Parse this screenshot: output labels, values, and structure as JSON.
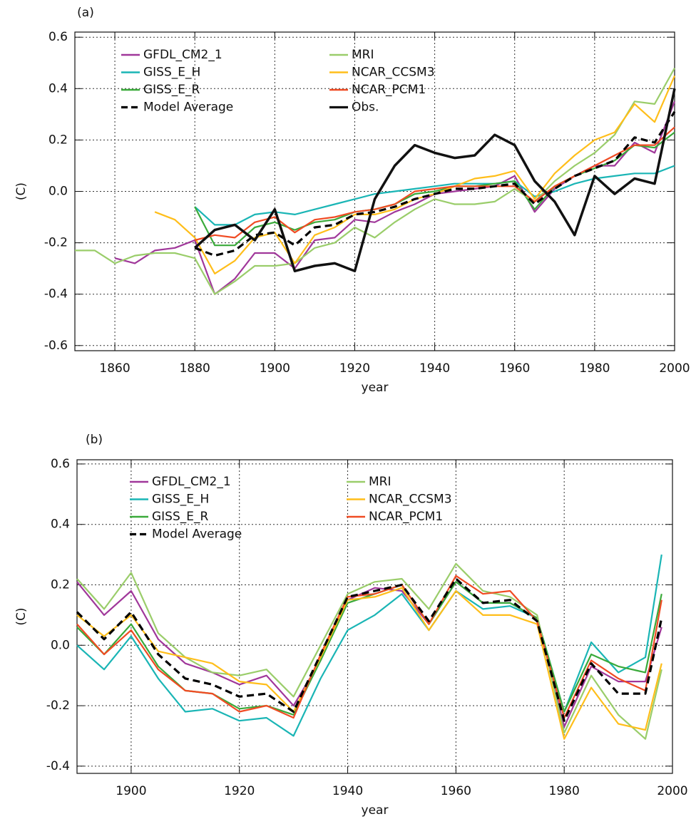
{
  "chart_data": [
    {
      "type": "line",
      "panel_label": "(a)",
      "y_label": "(C)",
      "x_label": "year",
      "xlim": [
        1850,
        2000
      ],
      "xticks": [
        1860,
        1880,
        1900,
        1920,
        1940,
        1960,
        1980,
        2000
      ],
      "ylim": [
        -0.62,
        0.62
      ],
      "yticks": [
        -0.6,
        -0.4,
        -0.2,
        {
          "value": 0,
          "label": "0.0"
        },
        0.2,
        0.4,
        0.6
      ],
      "grid": true,
      "legend": "upper-left",
      "x": [
        1850,
        1855,
        1860,
        1865,
        1870,
        1875,
        1880,
        1885,
        1890,
        1895,
        1900,
        1905,
        1910,
        1915,
        1920,
        1925,
        1930,
        1935,
        1940,
        1945,
        1950,
        1955,
        1960,
        1965,
        1970,
        1975,
        1980,
        1985,
        1990,
        1995,
        2000
      ],
      "series": [
        {
          "name": "GFDL_CM2_1",
          "color": "#a0379a",
          "values": [
            null,
            null,
            -0.26,
            -0.28,
            -0.23,
            -0.22,
            -0.19,
            -0.4,
            -0.34,
            -0.24,
            -0.24,
            -0.3,
            -0.19,
            -0.18,
            -0.11,
            -0.12,
            -0.08,
            -0.05,
            -0.01,
            0.0,
            0.01,
            0.02,
            0.06,
            -0.08,
            0.01,
            0.06,
            0.1,
            0.1,
            0.19,
            0.15,
            0.35
          ]
        },
        {
          "name": "GISS_E_H",
          "color": "#1ab5b5",
          "values": [
            null,
            null,
            null,
            null,
            null,
            null,
            -0.06,
            -0.13,
            -0.13,
            -0.09,
            -0.08,
            -0.09,
            -0.07,
            -0.05,
            -0.03,
            -0.01,
            0.0,
            0.01,
            0.02,
            0.03,
            0.03,
            0.03,
            0.04,
            -0.02,
            0.0,
            0.03,
            0.05,
            0.06,
            0.07,
            0.07,
            0.1
          ]
        },
        {
          "name": "GISS_E_R",
          "color": "#3aaa3a",
          "values": [
            null,
            null,
            null,
            null,
            null,
            null,
            -0.06,
            -0.21,
            -0.21,
            -0.14,
            -0.12,
            -0.15,
            -0.12,
            -0.11,
            -0.08,
            -0.07,
            -0.05,
            -0.01,
            0.0,
            0.02,
            0.02,
            0.03,
            0.04,
            -0.07,
            0.02,
            0.06,
            0.09,
            0.12,
            0.18,
            0.17,
            0.23
          ]
        },
        {
          "name": "Model Average",
          "color": "#000000",
          "dashed": true,
          "values": [
            null,
            null,
            null,
            null,
            null,
            null,
            -0.22,
            -0.25,
            -0.23,
            -0.17,
            -0.16,
            -0.21,
            -0.14,
            -0.13,
            -0.09,
            -0.08,
            -0.06,
            -0.03,
            -0.01,
            0.01,
            0.01,
            0.02,
            0.03,
            -0.05,
            0.01,
            0.06,
            0.09,
            0.12,
            0.21,
            0.19,
            0.31
          ]
        },
        {
          "name": "MRI",
          "color": "#9acd6a",
          "values": [
            -0.23,
            -0.23,
            -0.28,
            -0.25,
            -0.24,
            -0.24,
            -0.26,
            -0.4,
            -0.35,
            -0.29,
            -0.29,
            -0.28,
            -0.22,
            -0.2,
            -0.14,
            -0.18,
            -0.12,
            -0.07,
            -0.03,
            -0.05,
            -0.05,
            -0.04,
            0.01,
            -0.04,
            0.04,
            0.1,
            0.15,
            0.22,
            0.35,
            0.34,
            0.48
          ]
        },
        {
          "name": "NCAR_CCSM3",
          "color": "#ffbe1a",
          "values": [
            null,
            null,
            null,
            null,
            -0.08,
            -0.11,
            -0.18,
            -0.32,
            -0.27,
            -0.18,
            -0.16,
            -0.28,
            -0.17,
            -0.14,
            -0.09,
            -0.09,
            -0.07,
            -0.03,
            -0.01,
            0.02,
            0.05,
            0.06,
            0.08,
            -0.03,
            0.07,
            0.14,
            0.2,
            0.23,
            0.34,
            0.27,
            0.45
          ]
        },
        {
          "name": "NCAR_PCM1",
          "color": "#f04b23",
          "values": [
            null,
            null,
            null,
            null,
            null,
            null,
            -0.19,
            -0.17,
            -0.18,
            -0.12,
            -0.1,
            -0.16,
            -0.11,
            -0.1,
            -0.08,
            -0.07,
            -0.05,
            0.0,
            0.01,
            0.02,
            0.02,
            0.02,
            0.02,
            -0.04,
            0.02,
            0.06,
            0.1,
            0.14,
            0.18,
            0.18,
            0.25
          ]
        },
        {
          "name": "Obs.",
          "color": "#111111",
          "thick": true,
          "values": [
            null,
            null,
            null,
            null,
            null,
            null,
            -0.22,
            -0.15,
            -0.13,
            -0.19,
            -0.07,
            -0.31,
            -0.29,
            -0.28,
            -0.31,
            -0.03,
            0.1,
            0.18,
            0.15,
            0.13,
            0.14,
            0.22,
            0.18,
            0.04,
            -0.04,
            -0.17,
            0.06,
            -0.01,
            0.05,
            0.03,
            0.4
          ]
        }
      ]
    },
    {
      "type": "line",
      "panel_label": "(b)",
      "y_label": "(C)",
      "x_label": "year",
      "xlim": [
        1890,
        2000
      ],
      "xticks": [
        1900,
        1920,
        1940,
        1960,
        1980,
        2000
      ],
      "ylim": [
        -0.424,
        0.614
      ],
      "yticks": [
        -0.4,
        -0.2,
        {
          "value": 0,
          "label": "0.0"
        },
        0.2,
        0.4,
        0.6
      ],
      "grid": true,
      "legend": "upper-left",
      "x": [
        1890,
        1895,
        1900,
        1905,
        1910,
        1915,
        1920,
        1925,
        1930,
        1935,
        1940,
        1945,
        1950,
        1955,
        1960,
        1965,
        1970,
        1975,
        1980,
        1985,
        1990,
        1995,
        1998
      ],
      "series": [
        {
          "name": "GFDL_CM2_1",
          "color": "#a0379a",
          "values": [
            0.21,
            0.1,
            0.18,
            0.02,
            -0.06,
            -0.09,
            -0.13,
            -0.1,
            -0.2,
            -0.05,
            0.15,
            0.19,
            0.18,
            0.07,
            0.21,
            0.14,
            0.14,
            0.09,
            -0.27,
            -0.07,
            -0.12,
            -0.12,
            0.06
          ]
        },
        {
          "name": "GISS_E_H",
          "color": "#1ab5b5",
          "values": [
            0.0,
            -0.08,
            0.03,
            -0.11,
            -0.22,
            -0.21,
            -0.25,
            -0.24,
            -0.3,
            -0.11,
            0.05,
            0.1,
            0.17,
            0.05,
            0.18,
            0.12,
            0.13,
            0.09,
            -0.22,
            0.01,
            -0.09,
            -0.04,
            0.3
          ]
        },
        {
          "name": "GISS_E_R",
          "color": "#3aaa3a",
          "values": [
            0.06,
            -0.03,
            0.07,
            -0.07,
            -0.15,
            -0.16,
            -0.21,
            -0.2,
            -0.23,
            -0.05,
            0.14,
            0.17,
            0.2,
            0.07,
            0.21,
            0.14,
            0.14,
            0.09,
            -0.22,
            -0.03,
            -0.07,
            -0.09,
            0.17
          ]
        },
        {
          "name": "Model Average",
          "color": "#000000",
          "dashed": true,
          "values": [
            0.11,
            0.02,
            0.11,
            -0.03,
            -0.11,
            -0.13,
            -0.17,
            -0.16,
            -0.22,
            -0.03,
            0.16,
            0.18,
            0.2,
            0.08,
            0.22,
            0.14,
            0.15,
            0.08,
            -0.25,
            -0.06,
            -0.16,
            -0.16,
            0.09
          ]
        },
        {
          "name": "MRI",
          "color": "#9acd6a",
          "values": [
            0.22,
            0.12,
            0.24,
            0.04,
            -0.04,
            -0.09,
            -0.1,
            -0.08,
            -0.17,
            0.0,
            0.17,
            0.21,
            0.22,
            0.12,
            0.27,
            0.18,
            0.16,
            0.1,
            -0.29,
            -0.1,
            -0.23,
            -0.31,
            -0.08
          ]
        },
        {
          "name": "NCAR_CCSM3",
          "color": "#ffbe1a",
          "values": [
            0.1,
            0.03,
            0.1,
            -0.02,
            -0.04,
            -0.06,
            -0.12,
            -0.13,
            -0.22,
            -0.04,
            0.15,
            0.16,
            0.19,
            0.05,
            0.18,
            0.1,
            0.1,
            0.07,
            -0.31,
            -0.14,
            -0.26,
            -0.28,
            -0.06
          ]
        },
        {
          "name": "NCAR_PCM1",
          "color": "#f04b23",
          "values": [
            0.07,
            -0.03,
            0.05,
            -0.08,
            -0.15,
            -0.16,
            -0.22,
            -0.2,
            -0.24,
            -0.03,
            0.16,
            0.17,
            0.2,
            0.07,
            0.23,
            0.17,
            0.18,
            0.08,
            -0.24,
            -0.05,
            -0.11,
            -0.15,
            0.15
          ]
        }
      ]
    }
  ]
}
